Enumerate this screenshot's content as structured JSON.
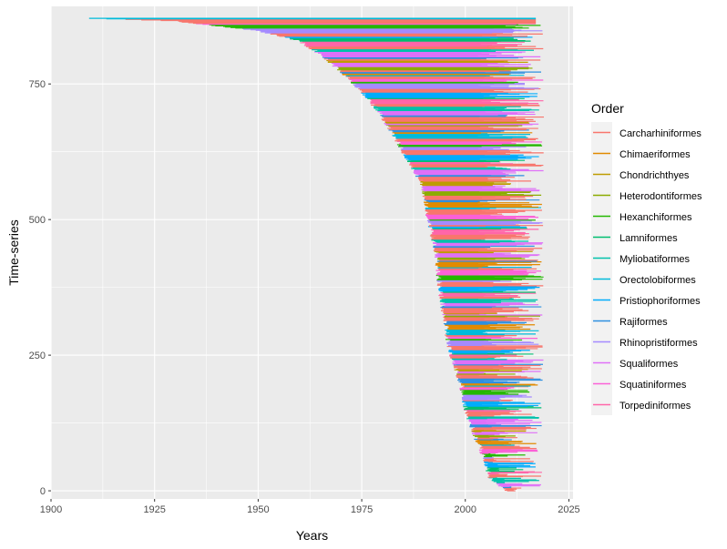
{
  "chart_data": {
    "type": "bar",
    "subtype": "horizontal-range-timeline",
    "xlabel": "Years",
    "ylabel": "Time-series",
    "xlim": [
      1900,
      2026
    ],
    "ylim": [
      -15,
      893
    ],
    "x_ticks": [
      1900,
      1925,
      1950,
      1975,
      2000,
      2025
    ],
    "y_ticks": [
      0,
      250,
      500,
      750
    ],
    "grid": true,
    "legend": {
      "title": "Order",
      "position": "right",
      "entries": [
        {
          "name": "Carcharhiniformes",
          "color": "#F8766D"
        },
        {
          "name": "Chimaeriformes",
          "color": "#E18A00"
        },
        {
          "name": "Chondrichthyes",
          "color": "#BE9C00"
        },
        {
          "name": "Heterodontiformes",
          "color": "#8CAB00"
        },
        {
          "name": "Hexanchiformes",
          "color": "#24B700"
        },
        {
          "name": "Lamniformes",
          "color": "#00BE70"
        },
        {
          "name": "Myliobatiformes",
          "color": "#00C1AB"
        },
        {
          "name": "Orectolobiformes",
          "color": "#00BBDA"
        },
        {
          "name": "Pristiophoriformes",
          "color": "#00ACFC"
        },
        {
          "name": "Rajiformes",
          "color": "#2E8FE0"
        },
        {
          "name": "Rhinopristiformes",
          "color": "#A58AFF"
        },
        {
          "name": "Squaliformes",
          "color": "#DF70F8"
        },
        {
          "name": "Squatiniformes",
          "color": "#FB61D7"
        },
        {
          "name": "Torpediniformes",
          "color": "#FF66A8"
        }
      ]
    },
    "start_curve": [
      [
        0,
        2010
      ],
      [
        25,
        2006
      ],
      [
        55,
        2005
      ],
      [
        90,
        2003
      ],
      [
        130,
        2001
      ],
      [
        160,
        2000
      ],
      [
        200,
        1999
      ],
      [
        240,
        1997
      ],
      [
        275,
        1996
      ],
      [
        320,
        1995
      ],
      [
        370,
        1994
      ],
      [
        440,
        1993
      ],
      [
        510,
        1991
      ],
      [
        560,
        1990
      ],
      [
        600,
        1987
      ],
      [
        640,
        1984
      ],
      [
        690,
        1980
      ],
      [
        720,
        1977
      ],
      [
        760,
        1972
      ],
      [
        800,
        1966
      ],
      [
        830,
        1960
      ],
      [
        848,
        1950
      ],
      [
        866,
        1930
      ],
      [
        872,
        1905
      ]
    ],
    "end_range": [
      2003,
      2019
    ],
    "n_series": 872,
    "series_order_sequence": [
      "Carcharhiniformes",
      "Rajiformes",
      "Squaliformes",
      "Myliobatiformes",
      "Carcharhiniformes",
      "Torpediniformes",
      "Lamniformes",
      "Pristiophoriformes",
      "Carcharhiniformes",
      "Rhinopristiformes",
      "Hexanchiformes",
      "Squatiniformes",
      "Carcharhiniformes",
      "Orectolobiformes",
      "Chimaeriformes",
      "Rajiformes",
      "Carcharhiniformes",
      "Heterodontiformes",
      "Squaliformes",
      "Chondrichthyes"
    ]
  }
}
